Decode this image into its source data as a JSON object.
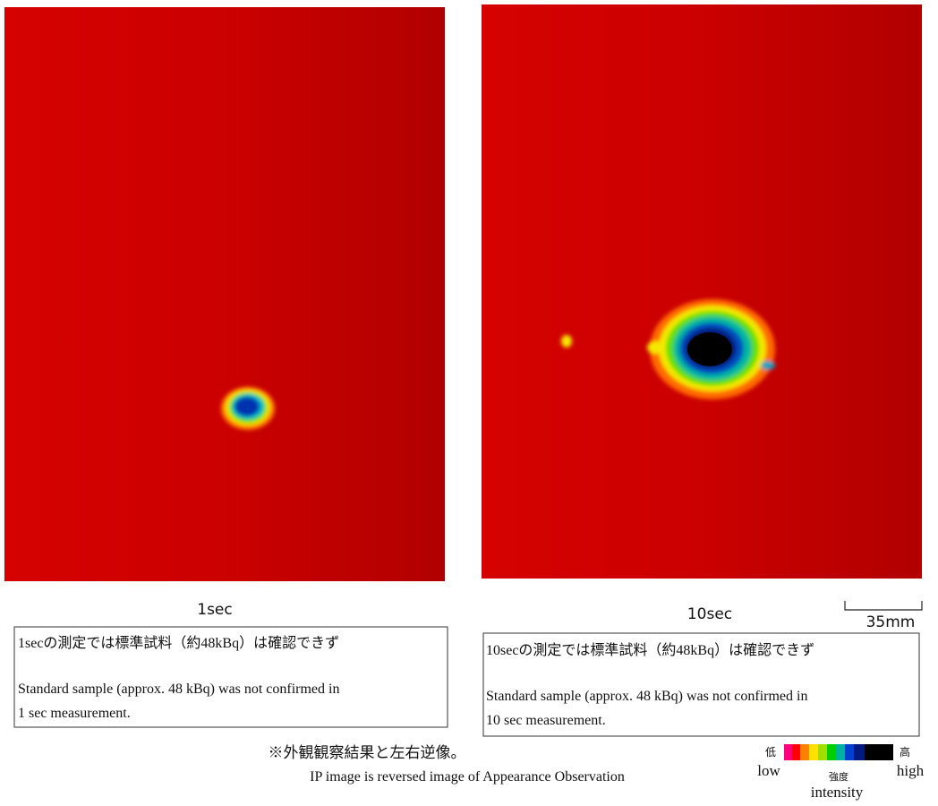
{
  "panels": [
    {
      "label": "1sec",
      "caption_ja": "1secの測定では標準試料（約48kBq）は確認できず",
      "caption_en": [
        "Standard sample (approx. 48 kBq) was not confirmed in",
        "1 sec measurement."
      ]
    },
    {
      "label": "10sec",
      "caption_ja": "10secの測定では標準試料（約48kBq）は確認できず",
      "caption_en": [
        "Standard sample (approx. 48 kBq) was not confirmed in",
        "10 sec measurement."
      ]
    }
  ],
  "scale_bar": "35mm",
  "note_ja": "※外観観察結果と左右逆像。",
  "note_en": "IP image is reversed image of Appearance Observation",
  "legend": {
    "low_ja": "低",
    "high_ja": "高",
    "low": "low",
    "high": "high",
    "label_ja": "強度",
    "label": "intensity"
  }
}
